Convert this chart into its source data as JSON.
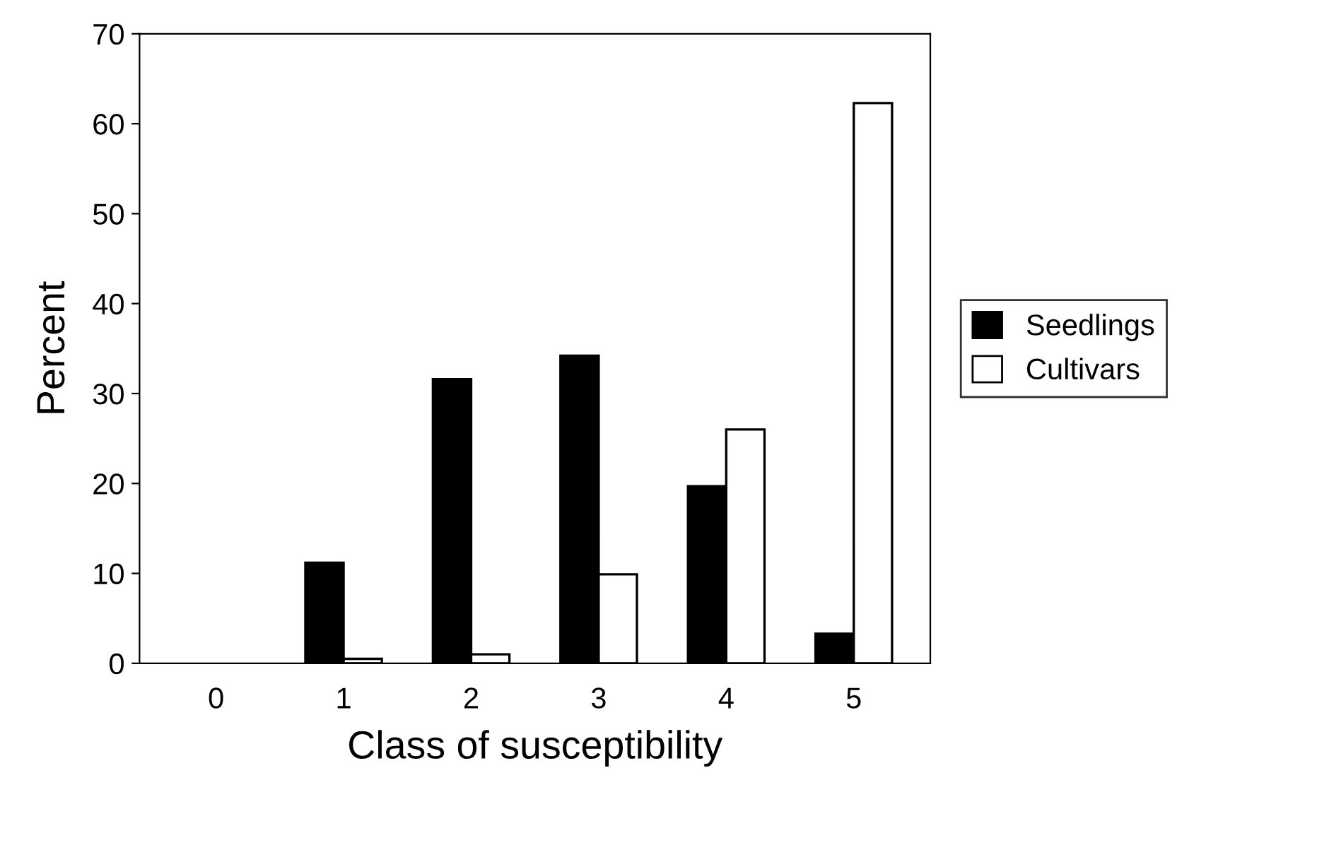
{
  "chart_data": {
    "type": "bar",
    "xlabel": "Class of susceptibility",
    "ylabel": "Percent",
    "categories": [
      "0",
      "1",
      "2",
      "3",
      "4",
      "5"
    ],
    "series": [
      {
        "name": "Seedlings",
        "color": "#000000",
        "values": [
          0,
          11.2,
          31.6,
          34.2,
          19.7,
          3.3
        ]
      },
      {
        "name": "Cultivars",
        "color": "#ffffff",
        "values": [
          0,
          0.5,
          1.0,
          9.9,
          26.0,
          62.3
        ]
      }
    ],
    "ylim": [
      0,
      70
    ],
    "yticks": [
      0,
      10,
      20,
      30,
      40,
      50,
      60,
      70
    ],
    "grid": false,
    "legend": "right"
  }
}
